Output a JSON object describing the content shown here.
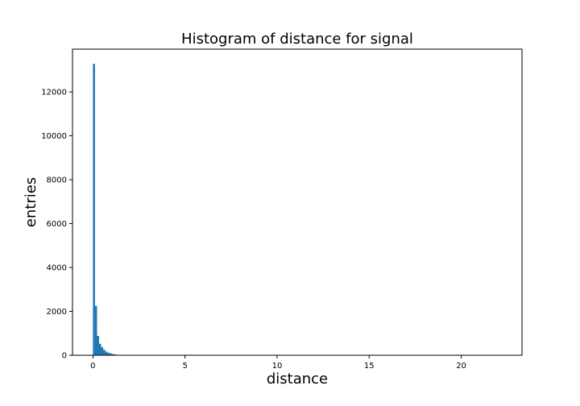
{
  "chart_data": {
    "type": "bar",
    "title": "Histogram of distance for signal",
    "xlabel": "distance",
    "ylabel": "entries",
    "xlim": [
      -1.11,
      23.3
    ],
    "ylim": [
      0,
      13950
    ],
    "xticks": [
      0,
      5,
      10,
      15,
      20
    ],
    "yticks": [
      0,
      2000,
      4000,
      6000,
      8000,
      10000,
      12000
    ],
    "bin_width": 0.111,
    "bins": [
      {
        "x0": 0.0,
        "count": 13280
      },
      {
        "x0": 0.111,
        "count": 2250
      },
      {
        "x0": 0.222,
        "count": 880
      },
      {
        "x0": 0.333,
        "count": 520
      },
      {
        "x0": 0.444,
        "count": 370
      },
      {
        "x0": 0.555,
        "count": 250
      },
      {
        "x0": 0.666,
        "count": 170
      },
      {
        "x0": 0.777,
        "count": 120
      },
      {
        "x0": 0.888,
        "count": 90
      },
      {
        "x0": 0.999,
        "count": 60
      },
      {
        "x0": 1.11,
        "count": 40
      },
      {
        "x0": 1.221,
        "count": 25
      },
      {
        "x0": 1.332,
        "count": 15
      },
      {
        "x0": 1.443,
        "count": 10
      },
      {
        "x0": 1.554,
        "count": 6
      }
    ],
    "bar_color": "#1f77b4",
    "grid": false,
    "legend": "none"
  }
}
